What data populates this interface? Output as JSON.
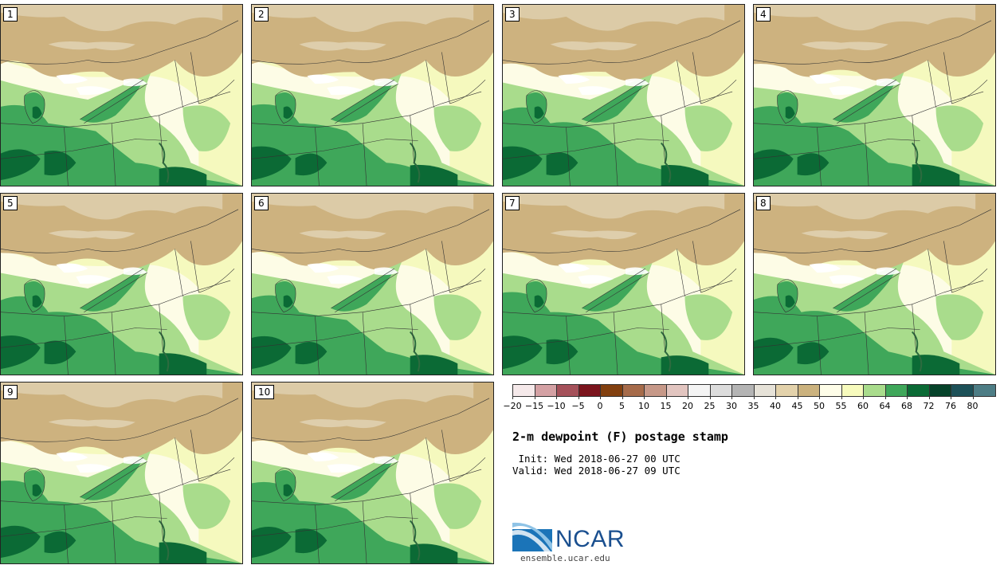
{
  "members": [
    {
      "label": "1"
    },
    {
      "label": "2"
    },
    {
      "label": "3"
    },
    {
      "label": "4"
    },
    {
      "label": "5"
    },
    {
      "label": "6"
    },
    {
      "label": "7"
    },
    {
      "label": "8"
    },
    {
      "label": "9"
    },
    {
      "label": "10"
    }
  ],
  "colorbar": {
    "colors": [
      "#f5e9ea",
      "#d4a1a4",
      "#a5515a",
      "#7b141d",
      "#82400f",
      "#a66b4a",
      "#c69888",
      "#e2c5c0",
      "#f4f4f4",
      "#dcdcdc",
      "#b4b4b4",
      "#e6e2d8",
      "#e3d2ab",
      "#cbb27e",
      "#fefde8",
      "#f7fbbd",
      "#a9dc8c",
      "#3fa75a",
      "#0b6a35",
      "#06432a",
      "#1d5158",
      "#4d7d85"
    ],
    "tick_labels": [
      "−20",
      "−15",
      "−10",
      "−5",
      "0",
      "5",
      "10",
      "15",
      "20",
      "25",
      "30",
      "35",
      "40",
      "45",
      "50",
      "55",
      "60",
      "64",
      "68",
      "72",
      "76",
      "80"
    ]
  },
  "title": "2-m dewpoint (F) postage stamp",
  "init": " Init: Wed 2018-06-27 00 UTC",
  "valid": "Valid: Wed 2018-06-27 09 UTC",
  "logo": {
    "text": "NCAR",
    "url": "ensemble.ucar.edu"
  },
  "map_colors": {
    "canada_tan": "#cdb27f",
    "canada_light": "#e2d5b8",
    "pale_cream": "#fdfce6",
    "pale_yellow": "#f5f9be",
    "light_green": "#a9dc8c",
    "mid_green": "#3fa75a",
    "dark_green": "#0b6a35",
    "water_white": "#ffffff"
  }
}
